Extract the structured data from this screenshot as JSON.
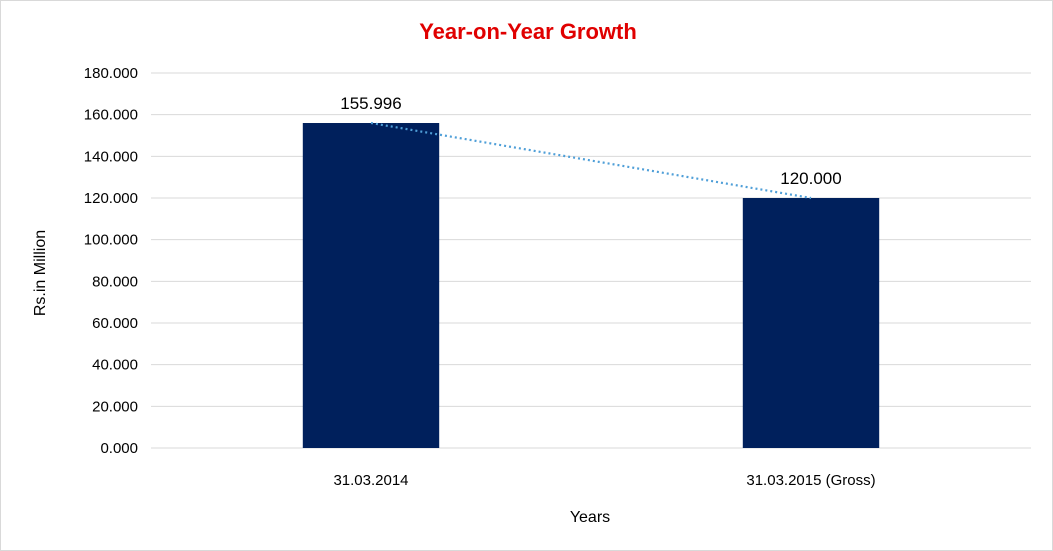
{
  "chart_data": {
    "type": "bar",
    "title": "Year-on-Year Growth",
    "xlabel": "Years",
    "ylabel": "Rs.in Million",
    "categories": [
      "31.03.2014",
      "31.03.2015 (Gross)"
    ],
    "values": [
      155.996,
      120.0
    ],
    "data_labels": [
      "155.996",
      "120.000"
    ],
    "ylim": [
      0,
      180
    ],
    "yticks": [
      "0.000",
      "20.000",
      "40.000",
      "60.000",
      "80.000",
      "100.000",
      "120.000",
      "140.000",
      "160.000",
      "180.000"
    ],
    "grid": true,
    "legend": "none",
    "trendline": {
      "type": "linear",
      "style": "dotted"
    },
    "colors": {
      "bar": "#00205c",
      "title": "#e00000",
      "grid": "#d9d9d9",
      "trendline": "#4f9fd8"
    }
  }
}
